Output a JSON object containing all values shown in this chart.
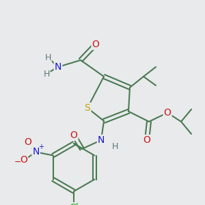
{
  "bg_color": "#e8eaec",
  "atom_colors": {
    "C": "#4a7a50",
    "H": "#607878",
    "N": "#1818cc",
    "O": "#cc1818",
    "S": "#c8a000",
    "Cl": "#18b018"
  },
  "bond_color": "#4a7a50",
  "figsize": [
    3.0,
    3.0
  ],
  "dpi": 100
}
